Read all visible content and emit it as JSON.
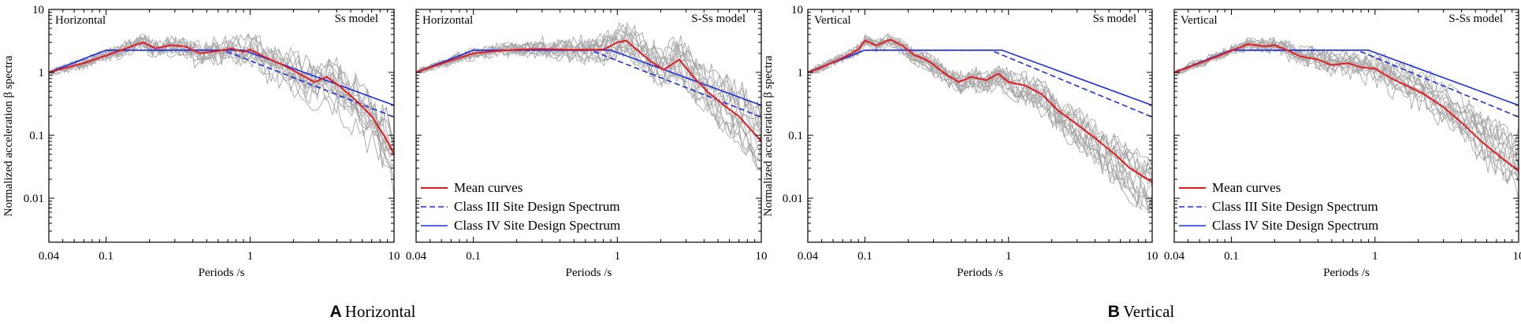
{
  "figure": {
    "ylabel": "Normalized acceleration β spectra",
    "xlabel": "Periods /s",
    "captions": [
      {
        "letter": "A",
        "text": "Horizontal"
      },
      {
        "letter": "B",
        "text": "Vertical"
      }
    ],
    "x_ticks": [
      {
        "value": 0.04,
        "label": "0.04"
      },
      {
        "value": 0.1,
        "label": "0.1"
      },
      {
        "value": 1,
        "label": "1"
      },
      {
        "value": 10,
        "label": "10"
      }
    ],
    "y_ticks": [
      {
        "value": 10,
        "label": "10"
      },
      {
        "value": 1,
        "label": "1"
      },
      {
        "value": 0.1,
        "label": "0.1"
      },
      {
        "value": 0.01,
        "label": "0.01"
      }
    ],
    "legend": {
      "mean": "Mean curves",
      "class3": "Class III Site Design Spectrum",
      "class4": "Class IV Site Design Spectrum"
    },
    "colors": {
      "mean": "#e8191e",
      "design": "#1a2ee6",
      "records": "#a6a6a6",
      "axis": "#000000"
    }
  },
  "chart_data": [
    {
      "type": "line",
      "panel": "A-left",
      "title_left": "Horizontal",
      "title_right": "Ss model",
      "xscale": "log",
      "yscale": "log",
      "xlim": [
        0.04,
        10
      ],
      "ylim": [
        0.002,
        10
      ],
      "xlabel": "Periods /s",
      "ylabel": "Normalized acceleration β spectra",
      "legend_visible": false,
      "series": [
        {
          "name": "Mean curves",
          "x": [
            0.04,
            0.05,
            0.07,
            0.1,
            0.13,
            0.18,
            0.22,
            0.28,
            0.35,
            0.45,
            0.6,
            0.75,
            0.9,
            1.0,
            1.3,
            1.7,
            2.2,
            2.8,
            3.4,
            4.2,
            5.5,
            7,
            8.5,
            10
          ],
          "y": [
            1.0,
            1.15,
            1.4,
            1.85,
            2.3,
            3.0,
            2.4,
            2.7,
            2.6,
            2.0,
            2.2,
            2.4,
            2.1,
            2.3,
            1.7,
            1.3,
            0.95,
            0.7,
            0.85,
            0.6,
            0.35,
            0.2,
            0.1,
            0.05
          ]
        },
        {
          "name": "Class III Site Design Spectrum",
          "x": [
            0.04,
            0.1,
            0.65,
            10
          ],
          "y": [
            1.0,
            2.25,
            2.25,
            0.195
          ]
        },
        {
          "name": "Class IV Site Design Spectrum",
          "x": [
            0.04,
            0.1,
            0.9,
            10
          ],
          "y": [
            1.0,
            2.25,
            2.25,
            0.3
          ]
        }
      ]
    },
    {
      "type": "line",
      "panel": "A-right",
      "title_left": "Horizontal",
      "title_right": "S-Ss model",
      "xscale": "log",
      "yscale": "log",
      "xlim": [
        0.04,
        10
      ],
      "ylim": [
        0.002,
        10
      ],
      "xlabel": "Periods /s",
      "ylabel": "",
      "legend_visible": true,
      "series": [
        {
          "name": "Mean curves",
          "x": [
            0.04,
            0.05,
            0.07,
            0.1,
            0.15,
            0.2,
            0.3,
            0.45,
            0.6,
            0.8,
            1.0,
            1.15,
            1.4,
            1.7,
            2.1,
            2.7,
            3.3,
            4.2,
            5.5,
            7,
            10
          ],
          "y": [
            1.0,
            1.2,
            1.55,
            2.0,
            2.2,
            2.3,
            2.35,
            2.3,
            2.3,
            2.3,
            3.0,
            3.2,
            2.2,
            1.5,
            1.1,
            1.6,
            0.9,
            0.5,
            0.3,
            0.2,
            0.08
          ]
        },
        {
          "name": "Class III Site Design Spectrum",
          "x": [
            0.04,
            0.1,
            0.65,
            10
          ],
          "y": [
            1.0,
            2.25,
            2.25,
            0.195
          ]
        },
        {
          "name": "Class IV Site Design Spectrum",
          "x": [
            0.04,
            0.1,
            0.9,
            10
          ],
          "y": [
            1.0,
            2.25,
            2.25,
            0.3
          ]
        }
      ]
    },
    {
      "type": "line",
      "panel": "B-left",
      "title_left": "Vertical",
      "title_right": "Ss model",
      "xscale": "log",
      "yscale": "log",
      "xlim": [
        0.04,
        10
      ],
      "ylim": [
        0.002,
        10
      ],
      "xlabel": "Periods /s",
      "ylabel": "Normalized acceleration β spectra",
      "legend_visible": false,
      "series": [
        {
          "name": "Mean curves",
          "x": [
            0.04,
            0.05,
            0.07,
            0.09,
            0.1,
            0.12,
            0.15,
            0.18,
            0.22,
            0.28,
            0.35,
            0.45,
            0.55,
            0.7,
            0.85,
            1.0,
            1.3,
            1.7,
            2.2,
            3.0,
            4.0,
            5.5,
            7,
            10
          ],
          "y": [
            1.0,
            1.2,
            1.7,
            2.3,
            3.2,
            2.7,
            3.3,
            2.7,
            1.9,
            1.5,
            1.0,
            0.7,
            0.85,
            0.75,
            0.95,
            0.7,
            0.62,
            0.45,
            0.25,
            0.15,
            0.09,
            0.05,
            0.03,
            0.018
          ]
        },
        {
          "name": "Class III Site Design Spectrum",
          "x": [
            0.04,
            0.1,
            0.75,
            10
          ],
          "y": [
            1.0,
            2.25,
            2.25,
            0.195
          ]
        },
        {
          "name": "Class IV Site Design Spectrum",
          "x": [
            0.04,
            0.1,
            0.9,
            10
          ],
          "y": [
            1.0,
            2.25,
            2.25,
            0.3
          ]
        }
      ]
    },
    {
      "type": "line",
      "panel": "B-right",
      "title_left": "Vertical",
      "title_right": "S-Ss model",
      "xscale": "log",
      "yscale": "log",
      "xlim": [
        0.04,
        10
      ],
      "ylim": [
        0.002,
        10
      ],
      "xlabel": "Periods /s",
      "ylabel": "",
      "legend_visible": true,
      "series": [
        {
          "name": "Mean curves",
          "x": [
            0.04,
            0.05,
            0.07,
            0.1,
            0.13,
            0.17,
            0.2,
            0.25,
            0.3,
            0.4,
            0.5,
            0.65,
            0.8,
            1.0,
            1.3,
            1.7,
            2.2,
            3.0,
            4.0,
            5.5,
            7.5,
            10
          ],
          "y": [
            1.0,
            1.2,
            1.6,
            2.2,
            2.8,
            2.6,
            2.7,
            2.2,
            1.8,
            1.6,
            1.3,
            1.4,
            1.2,
            1.15,
            0.8,
            0.6,
            0.45,
            0.28,
            0.16,
            0.08,
            0.045,
            0.027
          ]
        },
        {
          "name": "Class III Site Design Spectrum",
          "x": [
            0.04,
            0.1,
            0.75,
            10
          ],
          "y": [
            1.0,
            2.25,
            2.25,
            0.195
          ]
        },
        {
          "name": "Class IV Site Design Spectrum",
          "x": [
            0.04,
            0.1,
            0.9,
            10
          ],
          "y": [
            1.0,
            2.25,
            2.25,
            0.3
          ]
        }
      ]
    }
  ]
}
